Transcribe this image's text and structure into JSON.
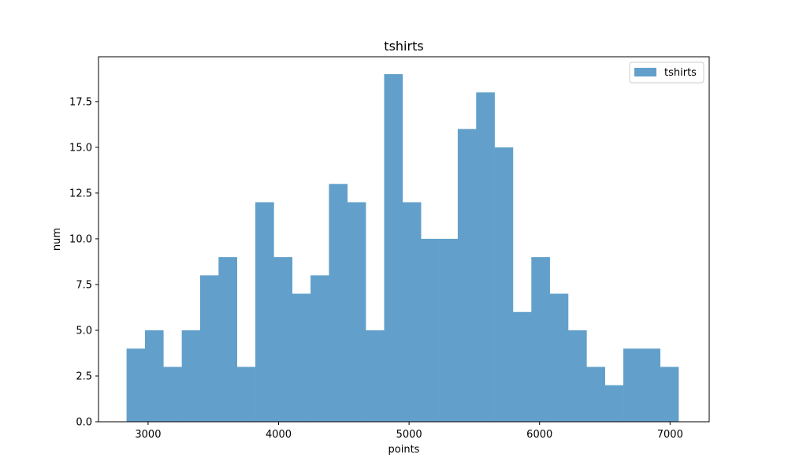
{
  "chart_data": {
    "type": "bar",
    "title": "tshirts",
    "xlabel": "points",
    "ylabel": "num",
    "xlim": [
      2620,
      7300
    ],
    "ylim": [
      0,
      19.95
    ],
    "x_ticks": [
      3000,
      4000,
      5000,
      6000,
      7000
    ],
    "y_ticks": [
      0.0,
      2.5,
      5.0,
      7.5,
      10.0,
      12.5,
      15.0,
      17.5
    ],
    "y_tick_labels": [
      "0.0",
      "2.5",
      "5.0",
      "7.5",
      "10.0",
      "12.5",
      "15.0",
      "17.5"
    ],
    "bin_edges": [
      2835,
      2976,
      3117,
      3258,
      3399,
      3540,
      3681,
      3822,
      3963,
      4104,
      4245,
      4386,
      4527,
      4668,
      4809,
      4950,
      5091,
      5232,
      5373,
      5514,
      5655,
      5796,
      5937,
      6078,
      6219,
      6360,
      6501,
      6642,
      6783,
      6924,
      7065
    ],
    "series": [
      {
        "name": "tshirts",
        "color": "#62a0cb",
        "values": [
          4,
          5,
          3,
          5,
          8,
          9,
          3,
          12,
          9,
          7,
          8,
          13,
          12,
          5,
          19,
          12,
          10,
          10,
          16,
          18,
          15,
          6,
          9,
          7,
          5,
          3,
          2,
          4,
          4,
          3
        ]
      }
    ],
    "legend_position": "top-right",
    "grid": false
  }
}
